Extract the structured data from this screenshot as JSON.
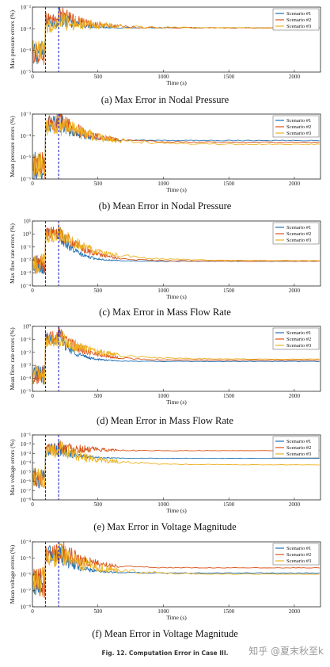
{
  "figure_caption": "Fig. 12.   Computation Error in Case III.",
  "watermark": "知乎 @夏末秋至k",
  "colors": {
    "s1": "#1f6fb4",
    "s2": "#d95319",
    "s3": "#edb120",
    "vline": "#1010c0"
  },
  "chart_data": [
    {
      "type": "line",
      "caption": "(a) Max Error in Nodal Pressure",
      "xlabel": "Time (s)",
      "ylabel": "Max pressure errors (%)",
      "xlim": [
        0,
        2200
      ],
      "xticks": [
        "0",
        "500",
        "1000",
        "1500",
        "2000"
      ],
      "ylim_log10": [
        -5,
        -2
      ],
      "yticks": [
        "10⁻⁵",
        "10⁻⁴",
        "10⁻³",
        "10⁻²"
      ],
      "yscale": "log",
      "vlines": [
        100,
        200
      ],
      "legend_position": "top-right",
      "legend": [
        "Scenario #1",
        "Scenario #2",
        "Scenario #3"
      ],
      "series": [
        {
          "name": "Scenario #1",
          "pre_level": 8e-05,
          "noise": 0.35,
          "peak": 0.004,
          "final": 0.0011
        },
        {
          "name": "Scenario #2",
          "pre_level": 8e-05,
          "noise": 0.35,
          "peak": 0.005,
          "final": 0.0011
        },
        {
          "name": "Scenario #3",
          "pre_level": 8e-05,
          "noise": 0.35,
          "peak": 0.0025,
          "final": 0.0011
        }
      ]
    },
    {
      "type": "line",
      "caption": "(b) Mean Error in Nodal Pressure",
      "xlabel": "Time (s)",
      "ylabel": "Mean pressure errors (%)",
      "xlim": [
        0,
        2200
      ],
      "xticks": [
        "0",
        "500",
        "1000",
        "1500",
        "2000"
      ],
      "ylim_log10": [
        -6,
        -3
      ],
      "yticks": [
        "10⁻⁶",
        "10⁻⁵",
        "10⁻⁴",
        "10⁻³"
      ],
      "yscale": "log",
      "vlines": [
        100,
        200
      ],
      "legend_position": "top-right",
      "legend": [
        "Scenario #1",
        "Scenario #2",
        "Scenario #3"
      ],
      "series": [
        {
          "name": "Scenario #1",
          "pre_level": 4e-06,
          "noise": 0.4,
          "peak": 0.0006,
          "final": 6e-05
        },
        {
          "name": "Scenario #2",
          "pre_level": 4e-06,
          "noise": 0.4,
          "peak": 0.0007,
          "final": 5e-05
        },
        {
          "name": "Scenario #3",
          "pre_level": 4e-06,
          "noise": 0.4,
          "peak": 0.0004,
          "final": 4e-05
        }
      ]
    },
    {
      "type": "line",
      "caption": "(c) Max Error in Mass Flow Rate",
      "xlabel": "Time (s)",
      "ylabel": "Max flow rate errors (%)",
      "xlim": [
        0,
        2200
      ],
      "xticks": [
        "0",
        "500",
        "1000",
        "1500",
        "2000"
      ],
      "ylim_log10": [
        -4,
        1
      ],
      "yticks": [
        "10⁻⁴",
        "10⁻³",
        "10⁻²",
        "10⁻¹",
        "10⁰",
        "10¹"
      ],
      "yscale": "log",
      "vlines": [
        100,
        200
      ],
      "legend_position": "top-right",
      "legend": [
        "Scenario #1",
        "Scenario #2",
        "Scenario #3"
      ],
      "series": [
        {
          "name": "Scenario #1",
          "pre_level": 0.005,
          "noise": 0.5,
          "peak": 1.5,
          "final": 0.008
        },
        {
          "name": "Scenario #2",
          "pre_level": 0.005,
          "noise": 0.5,
          "peak": 2.0,
          "final": 0.008
        },
        {
          "name": "Scenario #3",
          "pre_level": 0.005,
          "noise": 0.5,
          "peak": 1.2,
          "final": 0.009
        }
      ]
    },
    {
      "type": "line",
      "caption": "(d) Mean Error in Mass Flow Rate",
      "xlabel": "Time (s)",
      "ylabel": "Mean flow rate errors (%)",
      "xlim": [
        0,
        2200
      ],
      "xticks": [
        "0",
        "500",
        "1000",
        "1500",
        "2000"
      ],
      "ylim_log10": [
        -5,
        0
      ],
      "yticks": [
        "10⁻⁵",
        "10⁻⁴",
        "10⁻³",
        "10⁻²",
        "10⁻¹",
        "10⁰"
      ],
      "yscale": "log",
      "vlines": [
        100,
        200
      ],
      "legend_position": "top-right",
      "legend": [
        "Scenario #1",
        "Scenario #2",
        "Scenario #3"
      ],
      "series": [
        {
          "name": "Scenario #1",
          "pre_level": 0.0002,
          "noise": 0.5,
          "peak": 0.2,
          "final": 0.002
        },
        {
          "name": "Scenario #2",
          "pre_level": 0.0002,
          "noise": 0.5,
          "peak": 0.25,
          "final": 0.0025
        },
        {
          "name": "Scenario #3",
          "pre_level": 0.0002,
          "noise": 0.5,
          "peak": 0.15,
          "final": 0.003
        }
      ]
    },
    {
      "type": "line",
      "caption": "(e) Max Error in Voltage Magnitude",
      "xlabel": "Time (s)",
      "ylabel": "Max voltage errors (%)",
      "xlim": [
        0,
        2200
      ],
      "xticks": [
        "0",
        "500",
        "1000",
        "1500",
        "2000"
      ],
      "ylim_log10": [
        -8,
        -1
      ],
      "yticks": [
        "10⁻⁸",
        "10⁻⁷",
        "10⁻⁶",
        "10⁻⁵",
        "10⁻⁴",
        "10⁻³",
        "10⁻²",
        "10⁻¹"
      ],
      "yscale": "log",
      "vlines": [
        100,
        200
      ],
      "legend_position": "top-right",
      "legend": [
        "Scenario #1",
        "Scenario #2",
        "Scenario #3"
      ],
      "series": [
        {
          "name": "Scenario #1",
          "pre_level": 2e-06,
          "noise": 0.7,
          "peak": 0.004,
          "final": 0.0003
        },
        {
          "name": "Scenario #2",
          "pre_level": 2e-06,
          "noise": 0.7,
          "peak": 0.006,
          "final": 0.002
        },
        {
          "name": "Scenario #3",
          "pre_level": 2e-06,
          "noise": 0.7,
          "peak": 0.003,
          "final": 6e-05
        }
      ]
    },
    {
      "type": "line",
      "caption": "(f) Mean Error in Voltage Magnitude",
      "xlabel": "Time (s)",
      "ylabel": "Mean voltage errors (%)",
      "xlim": [
        0,
        2200
      ],
      "xticks": [
        "0",
        "500",
        "1000",
        "1500",
        "2000"
      ],
      "ylim_log10": [
        -8,
        -4
      ],
      "yticks": [
        "10⁻⁸",
        "10⁻⁷",
        "10⁻⁶",
        "10⁻⁵",
        "10⁻⁴"
      ],
      "yscale": "log",
      "vlines": [
        100,
        200
      ],
      "legend_position": "top-right",
      "legend": [
        "Scenario #1",
        "Scenario #2",
        "Scenario #3"
      ],
      "series": [
        {
          "name": "Scenario #1",
          "pre_level": 3e-07,
          "noise": 0.6,
          "peak": 3e-05,
          "final": 1.2e-06
        },
        {
          "name": "Scenario #2",
          "pre_level": 3e-07,
          "noise": 0.6,
          "peak": 4e-05,
          "final": 2.5e-06
        },
        {
          "name": "Scenario #3",
          "pre_level": 3e-07,
          "noise": 0.6,
          "peak": 2e-05,
          "final": 1e-06
        }
      ]
    }
  ]
}
